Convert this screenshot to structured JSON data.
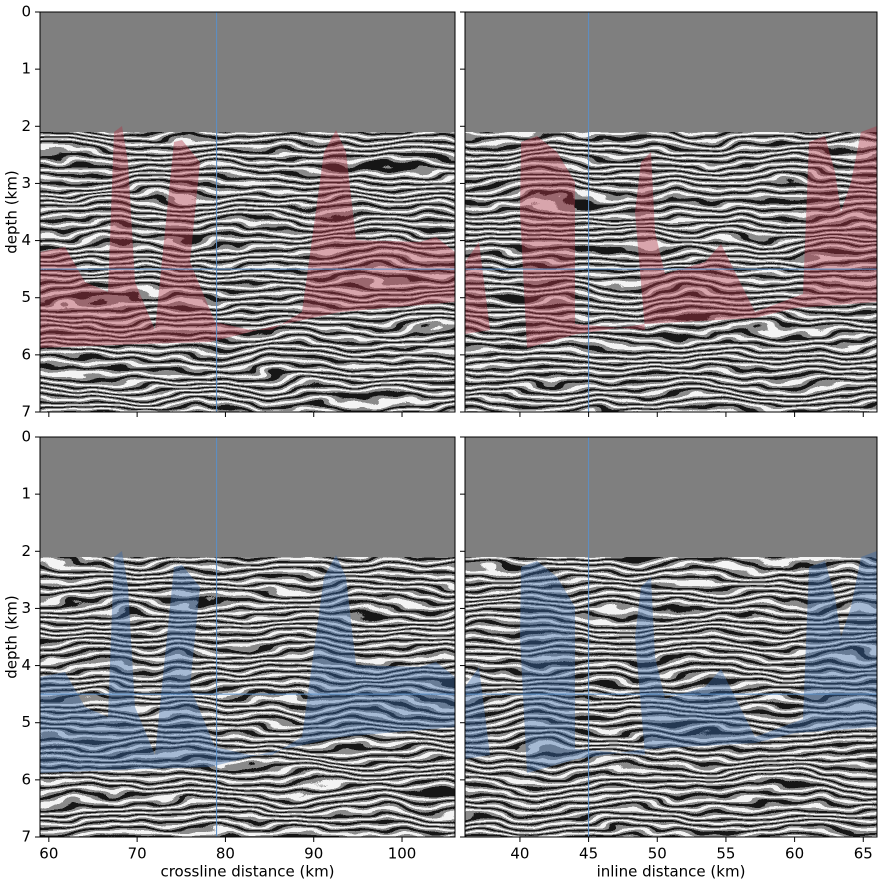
{
  "chart_data": [
    {
      "type": "image",
      "ylabel": "depth (km)",
      "xlim": [
        59,
        106
      ],
      "ylim": [
        0,
        7
      ],
      "xticks": [
        60,
        70,
        80,
        90,
        100
      ],
      "yticks": [
        0,
        1,
        2,
        3,
        4,
        5,
        6,
        7
      ],
      "xtick_labels": false,
      "ytick_labels": true,
      "crosshair": {
        "x": 79,
        "y": 4.5
      },
      "overlay_color": "#b03848",
      "water_depth": 2.1
    },
    {
      "type": "image",
      "xlim": [
        36,
        66
      ],
      "ylim": [
        0,
        7
      ],
      "xticks": [
        40,
        45,
        50,
        55,
        60,
        65
      ],
      "yticks": [
        0,
        1,
        2,
        3,
        4,
        5,
        6,
        7
      ],
      "xtick_labels": false,
      "ytick_labels": false,
      "crosshair": {
        "x": 45,
        "y": 4.5
      },
      "overlay_color": "#b03848",
      "water_depth": 2.1
    },
    {
      "type": "image",
      "ylabel": "depth (km)",
      "xlabel": "crossline distance (km)",
      "xlim": [
        59,
        106
      ],
      "ylim": [
        0,
        7
      ],
      "xticks": [
        60,
        70,
        80,
        90,
        100
      ],
      "yticks": [
        0,
        1,
        2,
        3,
        4,
        5,
        6,
        7
      ],
      "xtick_labels": true,
      "ytick_labels": true,
      "crosshair": {
        "x": 79,
        "y": 4.5
      },
      "overlay_color": "#3a6aa8",
      "water_depth": 2.1
    },
    {
      "type": "image",
      "xlabel": "inline distance (km)",
      "xlim": [
        36,
        66
      ],
      "ylim": [
        0,
        7
      ],
      "xticks": [
        40,
        45,
        50,
        55,
        60,
        65
      ],
      "yticks": [
        0,
        1,
        2,
        3,
        4,
        5,
        6,
        7
      ],
      "xtick_labels": true,
      "ytick_labels": false,
      "crosshair": {
        "x": 45,
        "y": 4.5
      },
      "overlay_color": "#3a6aa8",
      "water_depth": 2.1
    }
  ]
}
